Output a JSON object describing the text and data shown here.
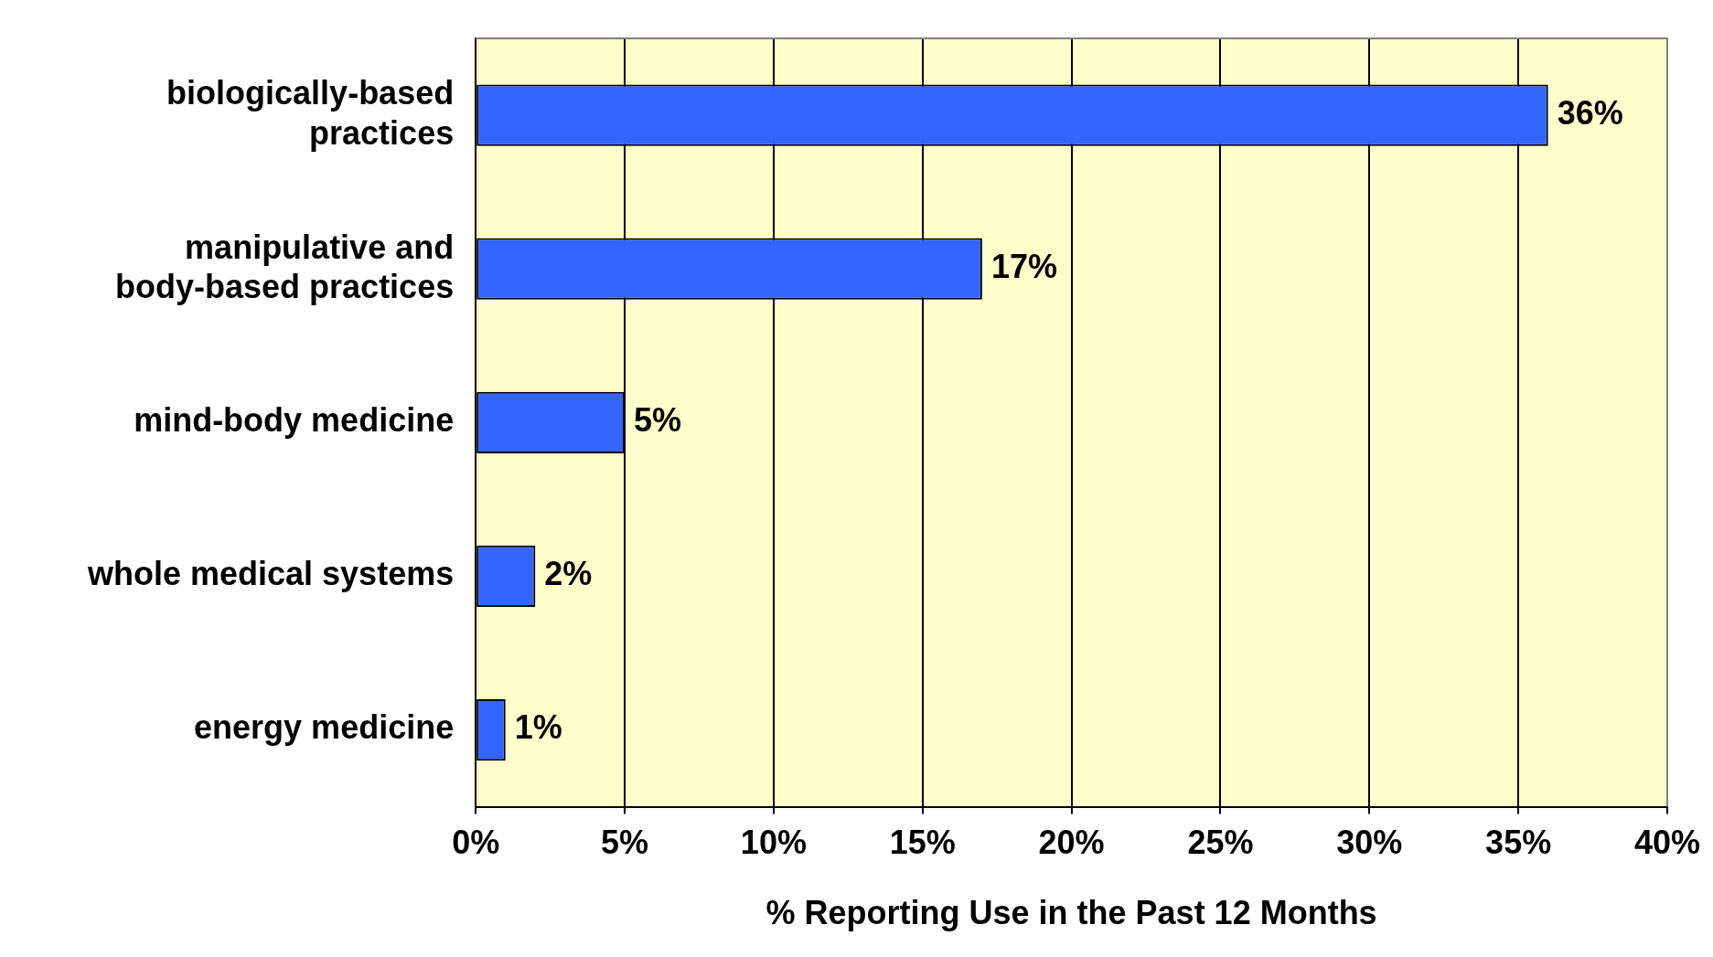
{
  "chart_data": {
    "type": "bar",
    "orientation": "horizontal",
    "xlabel": "% Reporting Use in the Past 12 Months",
    "categories": [
      "biologically-based practices",
      "manipulative and body-based practices",
      "mind-body medicine",
      "whole medical systems",
      "energy medicine"
    ],
    "values": [
      36,
      17,
      5,
      2,
      1
    ],
    "value_labels": [
      "36%",
      "17%",
      "5%",
      "2%",
      "1%"
    ],
    "color": "#3366ff",
    "xlim": [
      0,
      40
    ],
    "xticks": [
      {
        "value": 0,
        "label": "0%"
      },
      {
        "value": 5,
        "label": "5%"
      },
      {
        "value": 10,
        "label": "10%"
      },
      {
        "value": 15,
        "label": "15%"
      },
      {
        "value": 20,
        "label": "20%"
      },
      {
        "value": 25,
        "label": "25%"
      },
      {
        "value": 30,
        "label": "30%"
      },
      {
        "value": 35,
        "label": "35%"
      },
      {
        "value": 40,
        "label": "40%"
      }
    ],
    "grid": "x",
    "legend": false
  }
}
